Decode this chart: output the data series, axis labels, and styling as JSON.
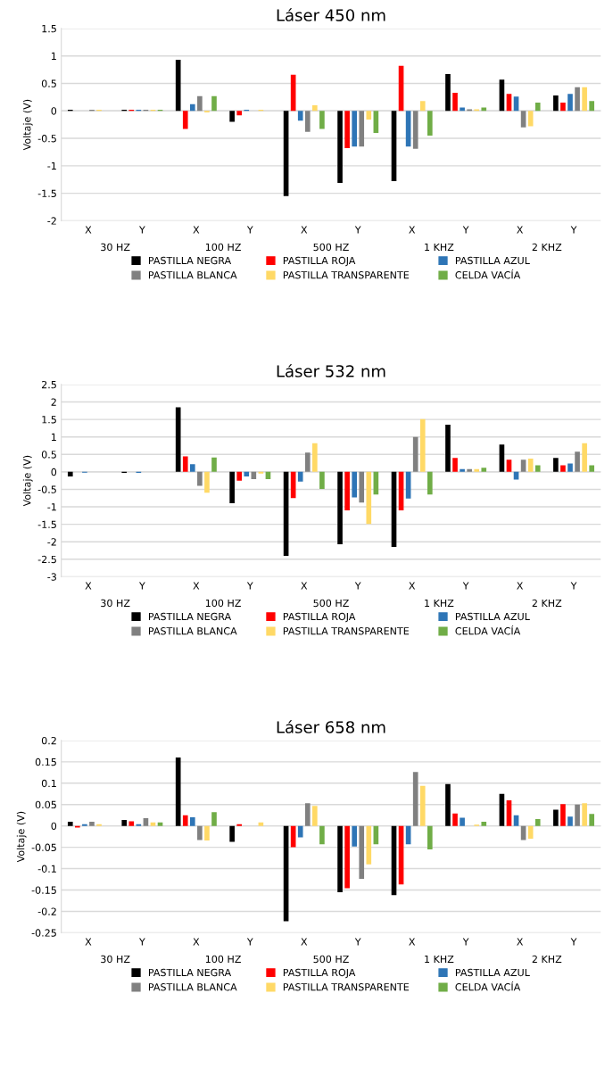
{
  "chart_data": [
    {
      "type": "bar",
      "title": "Láser 450 nm",
      "ylabel": "Voltaje (V)",
      "categories": [
        "X",
        "Y",
        "X",
        "Y",
        "X",
        "Y",
        "X",
        "Y",
        "X",
        "Y"
      ],
      "annotations": [
        "30 HZ",
        "100 HZ",
        "500 HZ",
        "1 KHZ",
        "2 KHZ"
      ],
      "ylim": [
        -2,
        1.5
      ],
      "yticks": [
        -2,
        -1.5,
        -1,
        -0.5,
        0,
        0.5,
        1,
        1.5
      ],
      "grid": "y",
      "legend": "bottom",
      "series": [
        {
          "name": "PASTILLA NEGRA",
          "color": "#000000",
          "values": [
            0.02,
            0.02,
            0.93,
            -0.2,
            -1.55,
            -1.31,
            -1.28,
            0.67,
            0.57,
            0.28
          ]
        },
        {
          "name": "PASTILLA ROJA",
          "color": "#ff0000",
          "values": [
            0,
            0.02,
            -0.33,
            -0.08,
            0.66,
            -0.68,
            0.82,
            0.33,
            0.31,
            0.15
          ]
        },
        {
          "name": "PASTILLA AZUL",
          "color": "#2e75b6",
          "values": [
            0,
            0.02,
            0.12,
            0.02,
            -0.18,
            -0.65,
            -0.65,
            0.06,
            0.26,
            0.31
          ]
        },
        {
          "name": "PASTILLA BLANCA",
          "color": "#808080",
          "values": [
            0.02,
            0.02,
            0.27,
            0,
            -0.38,
            -0.65,
            -0.69,
            0.03,
            -0.3,
            0.43
          ]
        },
        {
          "name": "PASTILLA TRANSPARENTE",
          "color": "#ffd966",
          "values": [
            0.02,
            0.02,
            -0.03,
            0.02,
            0.1,
            -0.16,
            0.18,
            0.03,
            -0.28,
            0.43
          ]
        },
        {
          "name": "CELDA VACÍA",
          "color": "#70ad47",
          "values": [
            0,
            0.02,
            0.27,
            0,
            -0.33,
            -0.4,
            -0.45,
            0.06,
            0.15,
            0.18
          ]
        }
      ]
    },
    {
      "type": "bar",
      "title": "Láser 532 nm",
      "ylabel": "Voltaje (V)",
      "categories": [
        "X",
        "Y",
        "X",
        "Y",
        "X",
        "Y",
        "X",
        "Y",
        "X",
        "Y"
      ],
      "annotations": [
        "30 HZ",
        "100 HZ",
        "500 HZ",
        "1 KHZ",
        "2 KHZ"
      ],
      "ylim": [
        -3,
        2.5
      ],
      "yticks": [
        -3,
        -2.5,
        -2,
        -1.5,
        -1,
        -0.5,
        0,
        0.5,
        1,
        1.5,
        2,
        2.5
      ],
      "grid": "y",
      "legend": "bottom",
      "series": [
        {
          "name": "PASTILLA NEGRA",
          "color": "#000000",
          "values": [
            -0.13,
            -0.03,
            1.85,
            -0.9,
            -2.4,
            -2.07,
            -2.15,
            1.35,
            0.78,
            0.4
          ]
        },
        {
          "name": "PASTILLA ROJA",
          "color": "#ff0000",
          "values": [
            0,
            0,
            0.44,
            -0.25,
            -0.75,
            -1.1,
            -1.1,
            0.4,
            0.35,
            0.19
          ]
        },
        {
          "name": "PASTILLA AZUL",
          "color": "#2e75b6",
          "values": [
            -0.02,
            -0.03,
            0.22,
            -0.13,
            -0.28,
            -0.73,
            -0.76,
            0.08,
            -0.22,
            0.24
          ]
        },
        {
          "name": "PASTILLA BLANCA",
          "color": "#808080",
          "values": [
            0,
            0,
            -0.4,
            -0.21,
            0.55,
            -0.88,
            1.0,
            0.08,
            0.35,
            0.58
          ]
        },
        {
          "name": "PASTILLA TRANSPARENTE",
          "color": "#ffd966",
          "values": [
            0,
            0,
            -0.6,
            -0.05,
            0.82,
            -1.49,
            1.51,
            0.08,
            0.38,
            0.82
          ]
        },
        {
          "name": "CELDA VACÍA",
          "color": "#70ad47",
          "values": [
            0,
            0,
            0.41,
            -0.21,
            -0.49,
            -0.65,
            -0.65,
            0.12,
            0.19,
            0.19
          ]
        }
      ]
    },
    {
      "type": "bar",
      "title": "Láser 658 nm",
      "ylabel": "Voltaje (V)",
      "categories": [
        "X",
        "Y",
        "X",
        "Y",
        "X",
        "Y",
        "X",
        "Y",
        "X",
        "Y"
      ],
      "annotations": [
        "30 HZ",
        "100 HZ",
        "500 HZ",
        "1 KHZ",
        "2 KHZ"
      ],
      "ylim": [
        -0.25,
        0.2
      ],
      "yticks": [
        -0.25,
        -0.2,
        -0.15,
        -0.1,
        -0.05,
        0,
        0.05,
        0.1,
        0.15,
        0.2
      ],
      "grid": "y",
      "legend": "bottom",
      "series": [
        {
          "name": "PASTILLA NEGRA",
          "color": "#000000",
          "values": [
            0.01,
            0.014,
            0.16,
            -0.037,
            -0.223,
            -0.155,
            -0.162,
            0.098,
            0.075,
            0.038
          ]
        },
        {
          "name": "PASTILLA ROJA",
          "color": "#ff0000",
          "values": [
            -0.004,
            0.011,
            0.025,
            0.004,
            -0.05,
            -0.146,
            -0.137,
            0.029,
            0.06,
            0.051
          ]
        },
        {
          "name": "PASTILLA AZUL",
          "color": "#2e75b6",
          "values": [
            0.004,
            0.004,
            0.02,
            0,
            -0.027,
            -0.048,
            -0.043,
            0.019,
            0.025,
            0.022
          ]
        },
        {
          "name": "PASTILLA BLANCA",
          "color": "#808080",
          "values": [
            0.01,
            0.018,
            -0.033,
            0,
            0.053,
            -0.124,
            0.126,
            0,
            -0.033,
            0.05
          ]
        },
        {
          "name": "PASTILLA TRANSPARENTE",
          "color": "#ffd966",
          "values": [
            0.004,
            0.008,
            -0.034,
            0.008,
            0.047,
            -0.09,
            0.094,
            0.003,
            -0.03,
            0.053
          ]
        },
        {
          "name": "CELDA VACÍA",
          "color": "#70ad47",
          "values": [
            0,
            0.008,
            0.032,
            0,
            -0.043,
            -0.043,
            -0.055,
            0.01,
            0.016,
            0.028
          ]
        }
      ]
    }
  ]
}
